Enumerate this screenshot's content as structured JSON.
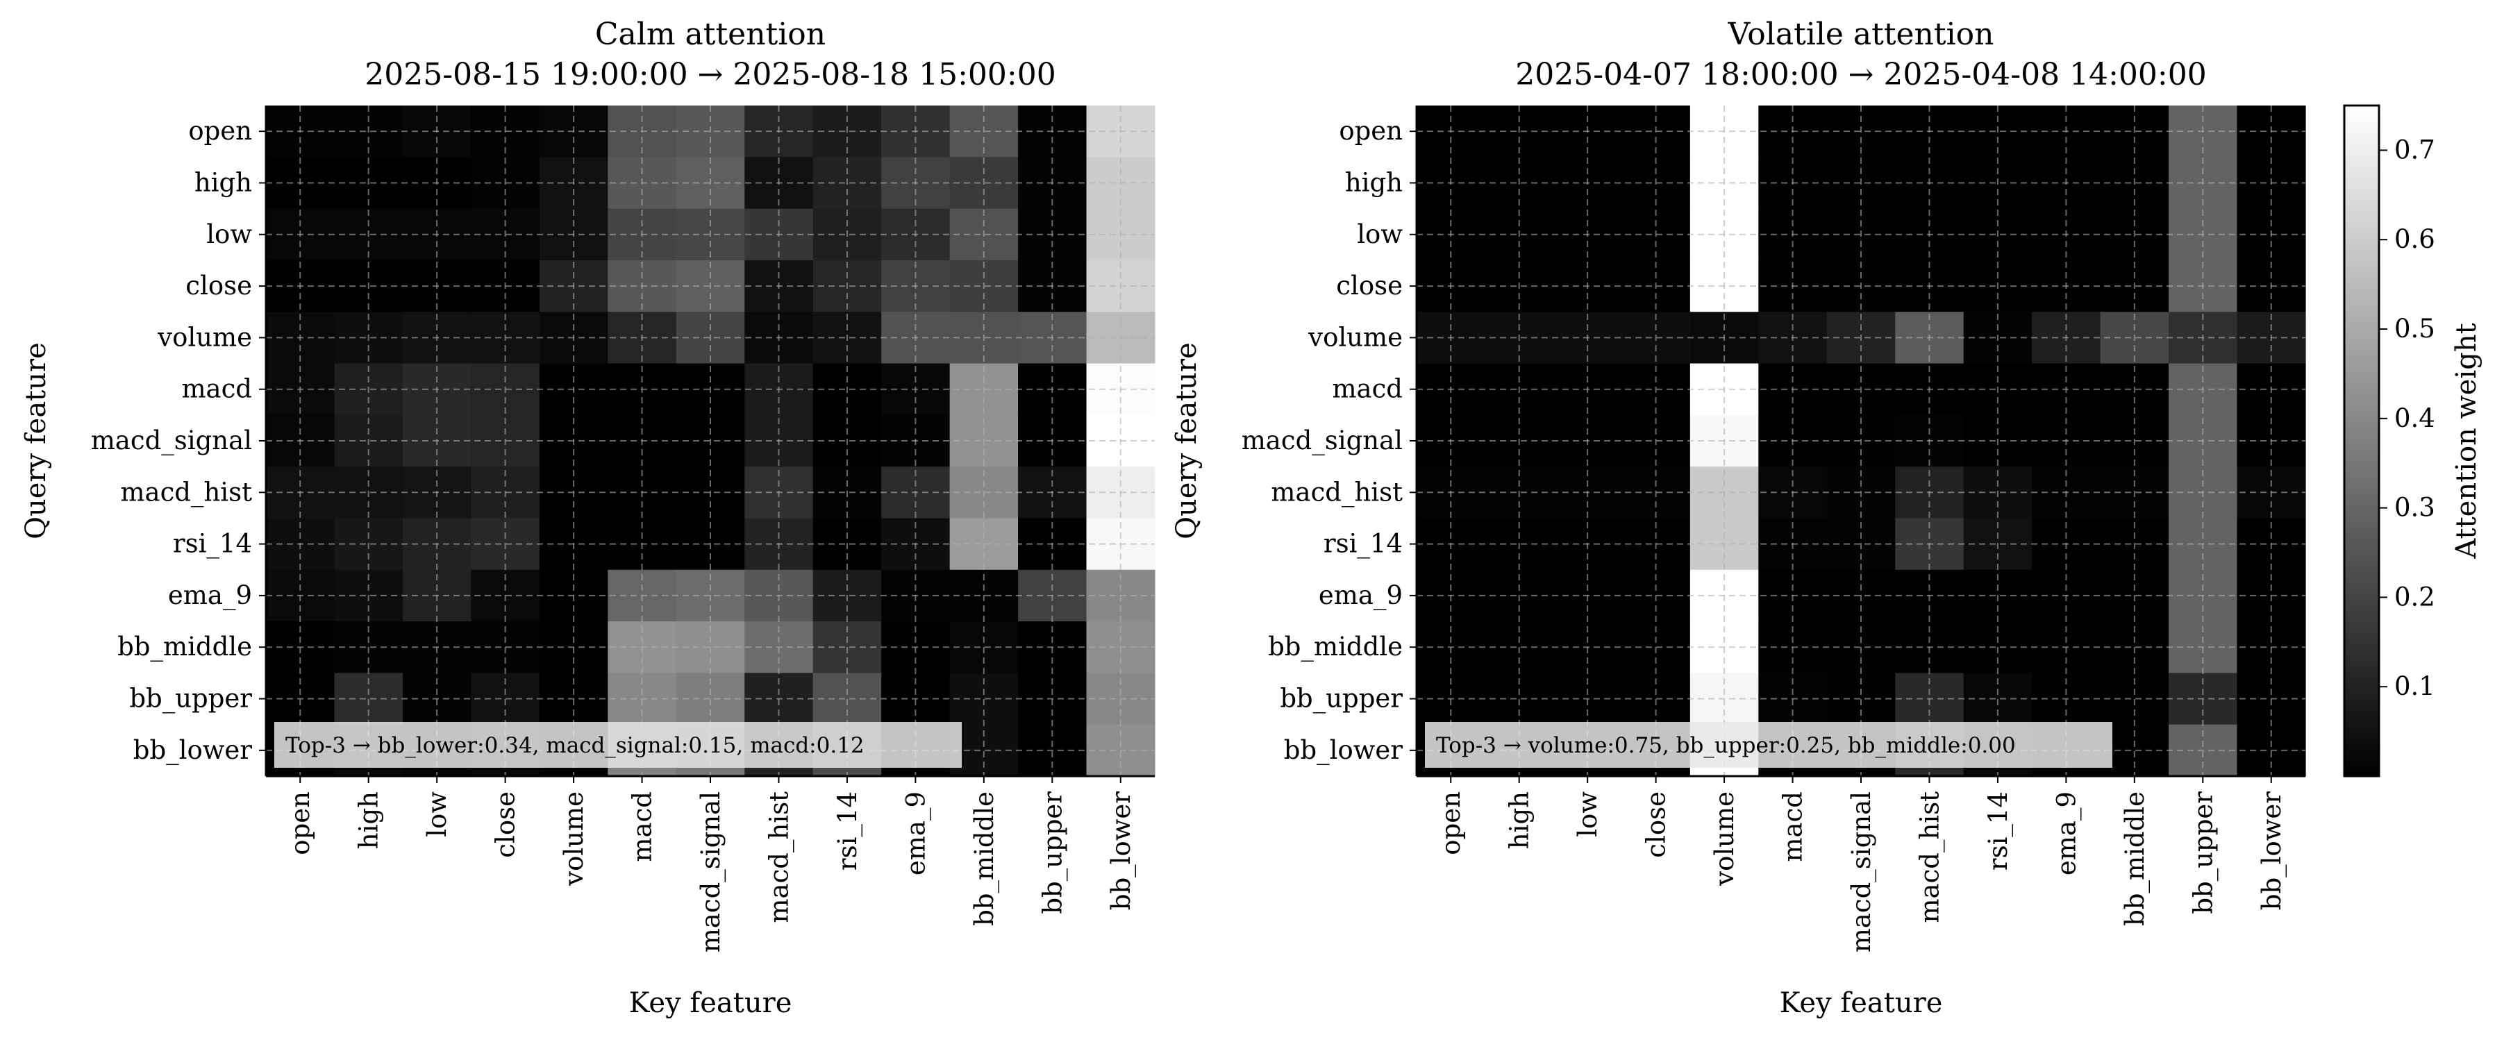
{
  "chart_data": [
    {
      "type": "heatmap",
      "title": "Calm attention",
      "subtitle": "2025-08-15 19:00:00 → 2025-08-18 15:00:00",
      "xlabel": "Key feature",
      "ylabel": "Query feature",
      "x_categories": [
        "open",
        "high",
        "low",
        "close",
        "volume",
        "macd",
        "macd_signal",
        "macd_hist",
        "rsi_14",
        "ema_9",
        "bb_middle",
        "bb_upper",
        "bb_lower"
      ],
      "y_categories": [
        "open",
        "high",
        "low",
        "close",
        "volume",
        "macd",
        "macd_signal",
        "macd_hist",
        "rsi_14",
        "ema_9",
        "bb_middle",
        "bb_upper",
        "bb_lower"
      ],
      "values": [
        [
          0.01,
          0.01,
          0.02,
          0.01,
          0.02,
          0.24,
          0.26,
          0.11,
          0.08,
          0.14,
          0.25,
          0.01,
          0.63
        ],
        [
          0.0,
          0.0,
          0.0,
          0.01,
          0.05,
          0.26,
          0.28,
          0.05,
          0.1,
          0.19,
          0.17,
          0.01,
          0.6
        ],
        [
          0.02,
          0.02,
          0.02,
          0.02,
          0.05,
          0.2,
          0.21,
          0.16,
          0.09,
          0.13,
          0.24,
          0.01,
          0.6
        ],
        [
          0.0,
          0.0,
          0.0,
          0.0,
          0.1,
          0.26,
          0.28,
          0.05,
          0.11,
          0.19,
          0.18,
          0.01,
          0.62
        ],
        [
          0.03,
          0.04,
          0.05,
          0.05,
          0.03,
          0.11,
          0.2,
          0.03,
          0.05,
          0.24,
          0.24,
          0.25,
          0.55
        ],
        [
          0.03,
          0.09,
          0.12,
          0.11,
          0.0,
          0.0,
          0.0,
          0.08,
          0.0,
          0.02,
          0.43,
          0.0,
          0.74
        ],
        [
          0.02,
          0.08,
          0.12,
          0.11,
          0.0,
          0.0,
          0.0,
          0.08,
          0.0,
          0.01,
          0.43,
          0.0,
          0.75
        ],
        [
          0.05,
          0.05,
          0.06,
          0.09,
          0.0,
          0.0,
          0.0,
          0.14,
          0.01,
          0.13,
          0.4,
          0.05,
          0.7
        ],
        [
          0.04,
          0.07,
          0.1,
          0.12,
          0.0,
          0.0,
          0.0,
          0.1,
          0.0,
          0.04,
          0.46,
          0.0,
          0.73
        ],
        [
          0.03,
          0.04,
          0.1,
          0.03,
          0.0,
          0.3,
          0.32,
          0.26,
          0.08,
          0.01,
          0.01,
          0.19,
          0.4
        ],
        [
          0.0,
          0.01,
          0.01,
          0.01,
          0.0,
          0.43,
          0.42,
          0.32,
          0.15,
          0.0,
          0.02,
          0.0,
          0.42
        ],
        [
          0.0,
          0.13,
          0.01,
          0.05,
          0.0,
          0.4,
          0.37,
          0.09,
          0.24,
          0.0,
          0.04,
          0.0,
          0.4
        ],
        [
          0.0,
          0.02,
          0.01,
          0.02,
          0.0,
          0.38,
          0.35,
          0.1,
          0.22,
          0.0,
          0.04,
          0.0,
          0.42
        ]
      ],
      "annotation": "Top-3 → bb_lower:0.34, macd_signal:0.15, macd:0.12",
      "grid": true
    },
    {
      "type": "heatmap",
      "title": "Volatile attention",
      "subtitle": "2025-04-07 18:00:00 → 2025-04-08 14:00:00",
      "xlabel": "Key feature",
      "ylabel": "Query feature",
      "x_categories": [
        "open",
        "high",
        "low",
        "close",
        "volume",
        "macd",
        "macd_signal",
        "macd_hist",
        "rsi_14",
        "ema_9",
        "bb_middle",
        "bb_upper",
        "bb_lower"
      ],
      "y_categories": [
        "open",
        "high",
        "low",
        "close",
        "volume",
        "macd",
        "macd_signal",
        "macd_hist",
        "rsi_14",
        "ema_9",
        "bb_middle",
        "bb_upper",
        "bb_lower"
      ],
      "values": [
        [
          0,
          0,
          0,
          0,
          0.75,
          0,
          0,
          0,
          0,
          0,
          0,
          0.29,
          0
        ],
        [
          0,
          0,
          0,
          0,
          0.75,
          0,
          0,
          0,
          0,
          0,
          0,
          0.29,
          0
        ],
        [
          0,
          0,
          0,
          0,
          0.75,
          0,
          0,
          0,
          0,
          0,
          0,
          0.29,
          0
        ],
        [
          0,
          0,
          0,
          0,
          0.75,
          0,
          0,
          0,
          0,
          0,
          0,
          0.29,
          0
        ],
        [
          0.04,
          0.04,
          0.04,
          0.04,
          0.03,
          0.05,
          0.1,
          0.27,
          0.01,
          0.09,
          0.21,
          0.14,
          0.08
        ],
        [
          0,
          0,
          0,
          0,
          0.75,
          0,
          0,
          0,
          0,
          0,
          0,
          0.29,
          0
        ],
        [
          0,
          0,
          0,
          0,
          0.73,
          0,
          0,
          0.01,
          0,
          0,
          0,
          0.29,
          0
        ],
        [
          0.01,
          0.01,
          0.01,
          0.01,
          0.59,
          0.02,
          0.01,
          0.1,
          0.04,
          0.01,
          0.01,
          0.29,
          0.02
        ],
        [
          0,
          0,
          0,
          0,
          0.59,
          0.01,
          0.01,
          0.16,
          0.05,
          0,
          0,
          0.29,
          0
        ],
        [
          0,
          0,
          0,
          0,
          0.75,
          0,
          0,
          0,
          0,
          0,
          0,
          0.29,
          0
        ],
        [
          0,
          0,
          0,
          0,
          0.75,
          0,
          0,
          0,
          0,
          0,
          0,
          0.29,
          0
        ],
        [
          0,
          0,
          0,
          0,
          0.72,
          0.01,
          0,
          0.12,
          0.02,
          0,
          0,
          0.12,
          0
        ],
        [
          0,
          0,
          0,
          0,
          0.75,
          0,
          0,
          0.12,
          0.02,
          0,
          0,
          0.29,
          0
        ]
      ],
      "annotation": "Top-3 → volume:0.75, bb_upper:0.25, bb_middle:0.00",
      "grid": true
    }
  ],
  "colorbar": {
    "label": "Attention weight",
    "colormap": "gray",
    "range": [
      0,
      0.75
    ],
    "ticks": [
      "0.1",
      "0.2",
      "0.3",
      "0.4",
      "0.5",
      "0.6",
      "0.7"
    ],
    "tick_values": [
      0.1,
      0.2,
      0.3,
      0.4,
      0.5,
      0.6,
      0.7
    ]
  }
}
